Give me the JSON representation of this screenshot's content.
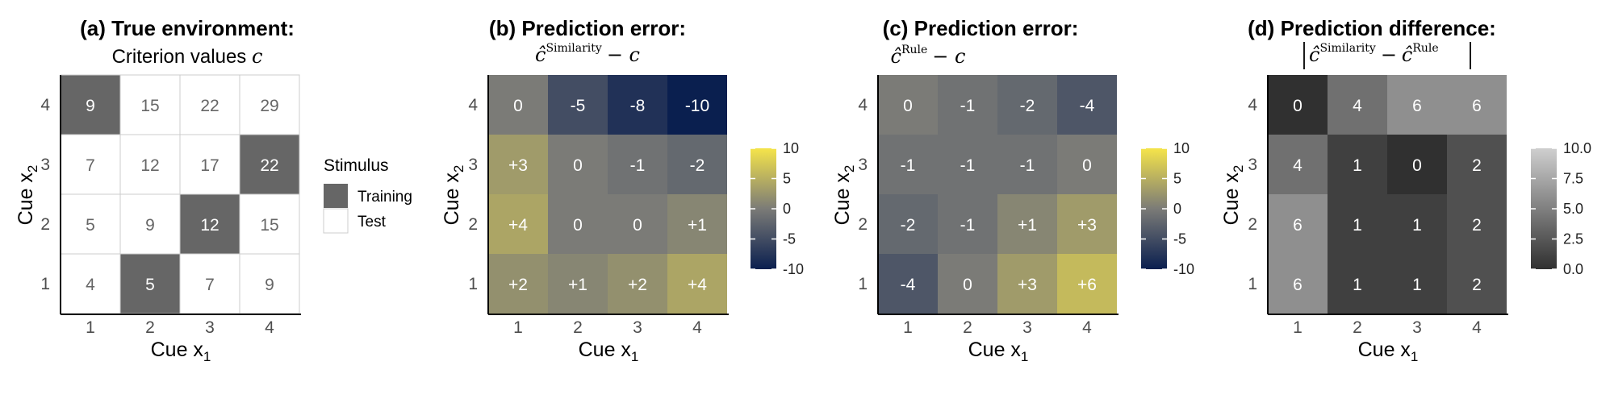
{
  "panels": [
    {
      "id": "a",
      "title": "(a) True environment:",
      "subtitle": "Criterion values",
      "subtitle_symbol": "c",
      "xlabel": "Cue x",
      "xlabel_sub": "1",
      "ylabel": "Cue x",
      "ylabel_sub": "2"
    },
    {
      "id": "b",
      "title": "(b) Prediction error:",
      "subtitle_hat": "ĉ",
      "subtitle_sup": "Similarity",
      "subtitle_tail": "− c",
      "xlabel": "Cue x",
      "xlabel_sub": "1",
      "ylabel": "Cue x",
      "ylabel_sub": "2"
    },
    {
      "id": "c",
      "title": "(c) Prediction error:",
      "subtitle_hat": "ĉ",
      "subtitle_sup": "Rule",
      "subtitle_tail": "− c",
      "xlabel": "Cue x",
      "xlabel_sub": "1",
      "ylabel": "Cue x",
      "ylabel_sub": "2"
    },
    {
      "id": "d",
      "title": "(d) Prediction difference:",
      "subtitle_hat1": "ĉ",
      "subtitle_sup1": "Similarity",
      "subtitle_minus": "−",
      "subtitle_hat2": "ĉ",
      "subtitle_sup2": "Rule",
      "xlabel": "Cue x",
      "xlabel_sub": "1",
      "ylabel": "Cue x",
      "ylabel_sub": "2"
    }
  ],
  "legend_a": {
    "title": "Stimulus",
    "items": [
      {
        "label": "Training",
        "color": "#666666"
      },
      {
        "label": "Test",
        "color": "#ffffff"
      }
    ]
  },
  "colorbars": {
    "b": {
      "ticks": [
        "10",
        "5",
        "0",
        "-5",
        "-10"
      ],
      "top_color": "#f5e44a",
      "mid_color": "#7b7b77",
      "bottom_color": "#0a1f4f"
    },
    "c": {
      "ticks": [
        "10",
        "5",
        "0",
        "-5",
        "-10"
      ],
      "top_color": "#f5e44a",
      "mid_color": "#7b7b77",
      "bottom_color": "#0a1f4f"
    },
    "d": {
      "ticks": [
        "10.0",
        "7.5",
        "5.0",
        "2.5",
        "0.0"
      ],
      "top_color": "#cfcfcf",
      "bottom_color": "#303030"
    }
  },
  "chart_data": [
    {
      "type": "heatmap",
      "panel": "a",
      "title": "(a) True environment: Criterion values c",
      "xlabel": "Cue x1",
      "ylabel": "Cue x2",
      "x": [
        "1",
        "2",
        "3",
        "4"
      ],
      "y": [
        "1",
        "2",
        "3",
        "4"
      ],
      "values": [
        [
          4,
          5,
          7,
          9
        ],
        [
          5,
          9,
          12,
          15
        ],
        [
          7,
          12,
          17,
          22
        ],
        [
          9,
          15,
          22,
          29
        ]
      ],
      "labels": [
        [
          "4",
          "5",
          "7",
          "9"
        ],
        [
          "5",
          "9",
          "12",
          "15"
        ],
        [
          "7",
          "12",
          "17",
          "22"
        ],
        [
          "9",
          "15",
          "22",
          "29"
        ]
      ],
      "training": [
        [
          0,
          1,
          0,
          0
        ],
        [
          0,
          0,
          1,
          0
        ],
        [
          0,
          0,
          0,
          1
        ],
        [
          1,
          0,
          0,
          0
        ]
      ]
    },
    {
      "type": "heatmap",
      "panel": "b",
      "title": "(b) Prediction error: ĉSimilarity − c",
      "xlabel": "Cue x1",
      "ylabel": "Cue x2",
      "x": [
        "1",
        "2",
        "3",
        "4"
      ],
      "y": [
        "1",
        "2",
        "3",
        "4"
      ],
      "values": [
        [
          2,
          1,
          2,
          4
        ],
        [
          4,
          0,
          0,
          1
        ],
        [
          3,
          0,
          -1,
          -2
        ],
        [
          0,
          -5,
          -8,
          -10
        ]
      ],
      "labels": [
        [
          "+2",
          "+1",
          "+2",
          "+4"
        ],
        [
          "+4",
          "0",
          "0",
          "+1"
        ],
        [
          "+3",
          "0",
          "-1",
          "-2"
        ],
        [
          "0",
          "-5",
          "-8",
          "-10"
        ]
      ],
      "scale": [
        -10,
        10
      ]
    },
    {
      "type": "heatmap",
      "panel": "c",
      "title": "(c) Prediction error: ĉRule − c",
      "xlabel": "Cue x1",
      "ylabel": "Cue x2",
      "x": [
        "1",
        "2",
        "3",
        "4"
      ],
      "y": [
        "1",
        "2",
        "3",
        "4"
      ],
      "values": [
        [
          -4,
          0,
          3,
          6
        ],
        [
          -2,
          -1,
          1,
          3
        ],
        [
          -1,
          -1,
          -1,
          0
        ],
        [
          0,
          -1,
          -2,
          -4
        ]
      ],
      "labels": [
        [
          "-4",
          "0",
          "+3",
          "+6"
        ],
        [
          "-2",
          "-1",
          "+1",
          "+3"
        ],
        [
          "-1",
          "-1",
          "-1",
          "0"
        ],
        [
          "0",
          "-1",
          "-2",
          "-4"
        ]
      ],
      "scale": [
        -10,
        10
      ]
    },
    {
      "type": "heatmap",
      "panel": "d",
      "title": "(d) Prediction difference: |ĉSimilarity − ĉRule|",
      "xlabel": "Cue x1",
      "ylabel": "Cue x2",
      "x": [
        "1",
        "2",
        "3",
        "4"
      ],
      "y": [
        "1",
        "2",
        "3",
        "4"
      ],
      "values": [
        [
          6,
          1,
          1,
          2
        ],
        [
          6,
          1,
          1,
          2
        ],
        [
          4,
          1,
          0,
          2
        ],
        [
          0,
          4,
          6,
          6
        ]
      ],
      "labels": [
        [
          "6",
          "1",
          "1",
          "2"
        ],
        [
          "6",
          "1",
          "1",
          "2"
        ],
        [
          "4",
          "1",
          "0",
          "2"
        ],
        [
          "0",
          "4",
          "6",
          "6"
        ]
      ],
      "scale": [
        0,
        10
      ]
    }
  ]
}
